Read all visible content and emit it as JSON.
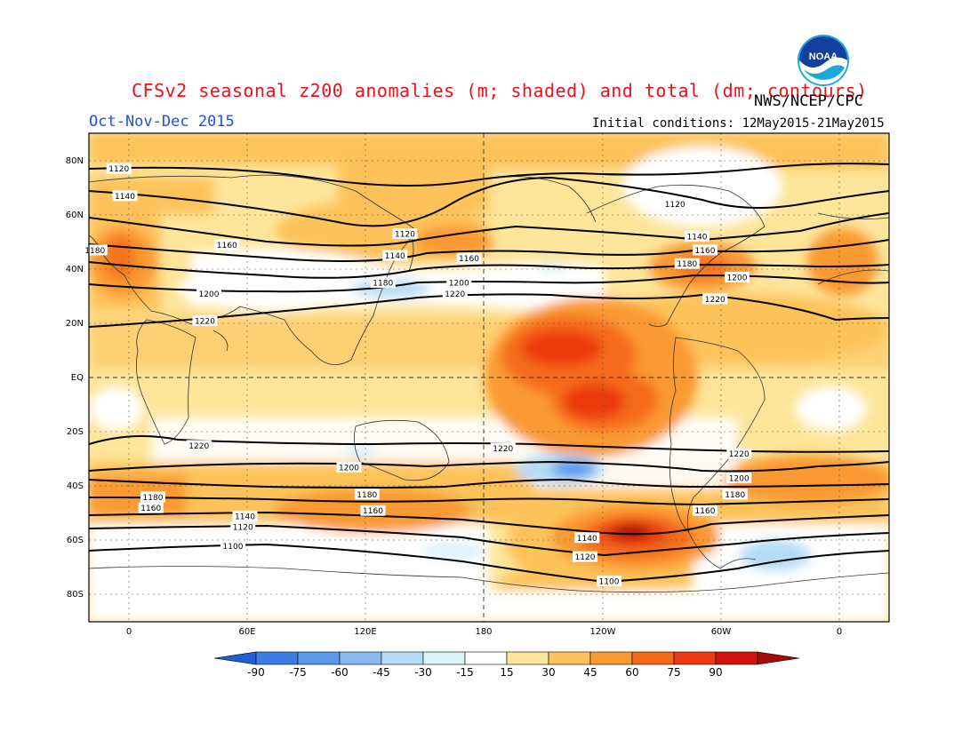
{
  "header": {
    "title": "CFSv2 seasonal z200 anomalies (m; shaded) and total (dm; contours)",
    "agency": "NWS/NCEP/CPC",
    "season": "Oct-Nov-Dec 2015",
    "initial_conditions": "Initial conditions: 12May2015-21May2015",
    "logo_text": "NOAA"
  },
  "map": {
    "lat_labels": [
      "80N",
      "60N",
      "40N",
      "20N",
      "EQ",
      "20S",
      "40S",
      "60S",
      "80S"
    ],
    "lon_labels": [
      "0",
      "60E",
      "120E",
      "180",
      "120W",
      "60W",
      "0"
    ],
    "contour_labels": [
      {
        "text": "1120",
        "lat": 77,
        "lon": -5
      },
      {
        "text": "1140",
        "lat": 67,
        "lon": -2
      },
      {
        "text": "1180",
        "lat": 47,
        "lon": -17
      },
      {
        "text": "1160",
        "lat": 49,
        "lon": 49
      },
      {
        "text": "1200",
        "lat": 31,
        "lon": 40
      },
      {
        "text": "1220",
        "lat": 21,
        "lon": 38
      },
      {
        "text": "1120",
        "lat": 53,
        "lon": 138
      },
      {
        "text": "1140",
        "lat": 45,
        "lon": 133
      },
      {
        "text": "1160",
        "lat": 44,
        "lon": 170
      },
      {
        "text": "1180",
        "lat": 35,
        "lon": 127
      },
      {
        "text": "1200",
        "lat": 35,
        "lon": 165
      },
      {
        "text": "1220",
        "lat": 31,
        "lon": 163
      },
      {
        "text": "1120",
        "lat": 64,
        "lon": -87
      },
      {
        "text": "1140",
        "lat": 52,
        "lon": -76
      },
      {
        "text": "1160",
        "lat": 47,
        "lon": -72
      },
      {
        "text": "1180",
        "lat": 42,
        "lon": -81
      },
      {
        "text": "1200",
        "lat": 37,
        "lon": -56
      },
      {
        "text": "1220",
        "lat": 29,
        "lon": -67
      },
      {
        "text": "1220",
        "lat": -25,
        "lon": 35
      },
      {
        "text": "1200",
        "lat": -33,
        "lon": 110
      },
      {
        "text": "1180",
        "lat": -43,
        "lon": 119
      },
      {
        "text": "1160",
        "lat": -49,
        "lon": 122
      },
      {
        "text": "1220",
        "lat": -26,
        "lon": -173
      },
      {
        "text": "1180",
        "lat": -44,
        "lon": 12
      },
      {
        "text": "1160",
        "lat": -48,
        "lon": 11
      },
      {
        "text": "1140",
        "lat": -51,
        "lon": 58
      },
      {
        "text": "1120",
        "lat": -55,
        "lon": 57
      },
      {
        "text": "1100",
        "lat": -62,
        "lon": 52
      },
      {
        "text": "1140",
        "lat": -59,
        "lon": -131
      },
      {
        "text": "1120",
        "lat": -66,
        "lon": -132
      },
      {
        "text": "1100",
        "lat": -75,
        "lon": -120
      },
      {
        "text": "1160",
        "lat": -49,
        "lon": -72
      },
      {
        "text": "1180",
        "lat": -43,
        "lon": -57
      },
      {
        "text": "1200",
        "lat": -37,
        "lon": -55
      },
      {
        "text": "1220",
        "lat": -28,
        "lon": -55
      }
    ]
  },
  "colorbar": {
    "labels": [
      "-90",
      "-75",
      "-60",
      "-45",
      "-30",
      "-15",
      "15",
      "30",
      "45",
      "60",
      "75",
      "90"
    ],
    "colors": [
      "#1f5fd6",
      "#3a7de4",
      "#5a9ae8",
      "#86baf0",
      "#b4dcf6",
      "#daf2fa",
      "#ffffff",
      "#fde59a",
      "#fdc35a",
      "#fb9a30",
      "#f56a1a",
      "#ec3a10",
      "#d3140c",
      "#a50a06"
    ]
  },
  "chart_data": {
    "type": "map",
    "variable": "z200",
    "anomaly_units": "m",
    "contour_units": "dm",
    "contour_levels": [
      1100,
      1120,
      1140,
      1160,
      1180,
      1200,
      1220
    ],
    "shading_levels": [
      -90,
      -75,
      -60,
      -45,
      -30,
      -15,
      15,
      30,
      45,
      60,
      75,
      90
    ]
  }
}
